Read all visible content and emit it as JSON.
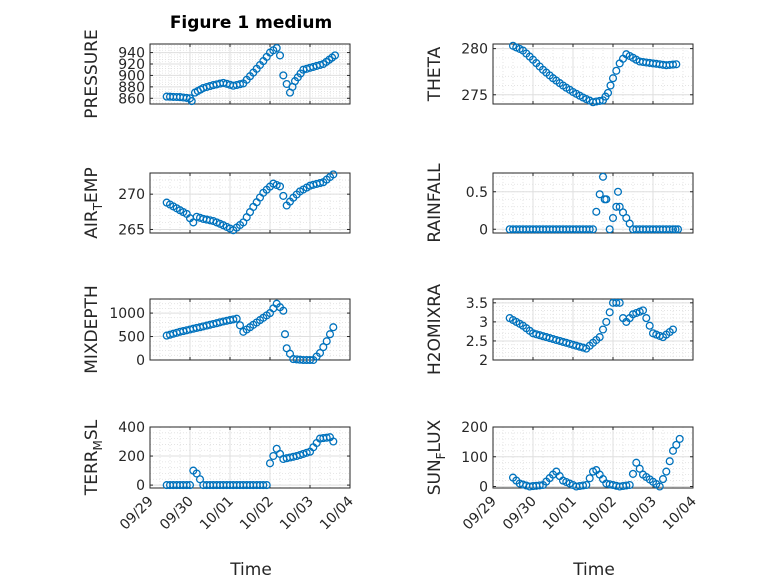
{
  "figure": {
    "title": "Figure 1 medium",
    "xlabel": "Time",
    "date_ticks": [
      "09/29",
      "09/30",
      "10/01",
      "10/02",
      "10/03",
      "10/04"
    ]
  },
  "colors": {
    "marker": "#0072BD",
    "axes": "#262626",
    "grid": "#dfdfdf",
    "background": "#ffffff"
  },
  "chart_data": [
    {
      "type": "scatter",
      "ylabel": "PRESSURE",
      "ylim": [
        850,
        955
      ],
      "yticks": [
        "940",
        "920",
        "900",
        "880",
        "860"
      ],
      "ytick_values": [
        940,
        920,
        900,
        880,
        860
      ],
      "xlim": [
        "09/29",
        "10/04"
      ],
      "grid": true,
      "x": [
        "09/29 10:00",
        "09/29 18:00",
        "09/30 00:00",
        "09/30 01:00",
        "09/30 03:00",
        "09/30 08:00",
        "09/30 14:00",
        "09/30 20:00",
        "10/01 02:00",
        "10/01 08:00",
        "10/01 14:00",
        "10/01 20:00",
        "10/02 00:00",
        "10/02 04:00",
        "10/02 06:00",
        "10/02 08:00",
        "10/02 12:00",
        "10/02 15:00",
        "10/02 20:00",
        "10/03 02:00",
        "10/03 08:00",
        "10/03 15:00"
      ],
      "y": [
        863,
        862,
        860,
        855,
        870,
        878,
        883,
        887,
        882,
        886,
        905,
        925,
        940,
        948,
        935,
        900,
        870,
        890,
        910,
        915,
        920,
        935
      ]
    },
    {
      "type": "scatter",
      "ylabel": "THETA",
      "ylim": [
        274,
        280.5
      ],
      "yticks": [
        "280",
        "275"
      ],
      "ytick_values": [
        280,
        275
      ],
      "xlim": [
        "09/29",
        "10/04"
      ],
      "grid": true,
      "x": [
        "09/29 12:00",
        "09/29 18:00",
        "09/30 00:00",
        "09/30 06:00",
        "09/30 12:00",
        "09/30 18:00",
        "10/01 00:00",
        "10/01 06:00",
        "10/01 12:00",
        "10/01 18:00",
        "10/01 21:00",
        "10/02 00:00",
        "10/02 04:00",
        "10/02 08:00",
        "10/02 16:00",
        "10/03 00:00",
        "10/03 08:00",
        "10/03 14:00"
      ],
      "y": [
        280.3,
        279.8,
        278.8,
        277.7,
        276.8,
        276.0,
        275.3,
        274.7,
        274.2,
        274.4,
        275.2,
        276.8,
        278.4,
        279.4,
        278.6,
        278.4,
        278.2,
        278.3
      ]
    },
    {
      "type": "scatter",
      "ylabel": "AIR_TEMP",
      "ylim": [
        264.5,
        273
      ],
      "yticks": [
        "270",
        "265"
      ],
      "ytick_values": [
        270,
        265
      ],
      "xlim": [
        "09/29",
        "10/04"
      ],
      "grid": true,
      "x": [
        "09/29 10:00",
        "09/29 16:00",
        "09/29 22:00",
        "09/30 02:00",
        "09/30 04:00",
        "09/30 08:00",
        "09/30 14:00",
        "09/30 20:00",
        "10/01 02:00",
        "10/01 08:00",
        "10/01 14:00",
        "10/01 20:00",
        "10/02 02:00",
        "10/02 06:00",
        "10/02 10:00",
        "10/02 14:00",
        "10/02 18:00",
        "10/03 00:00",
        "10/03 08:00",
        "10/03 14:00"
      ],
      "y": [
        268.8,
        268.0,
        267.2,
        266.0,
        266.8,
        266.5,
        266.2,
        265.6,
        264.9,
        266.0,
        268.2,
        270.2,
        271.5,
        271.1,
        268.4,
        269.5,
        270.4,
        271.2,
        271.7,
        272.8
      ]
    },
    {
      "type": "scatter",
      "ylabel": "RAINFALL",
      "ylim": [
        -0.05,
        0.75
      ],
      "yticks": [
        "0.5",
        "0"
      ],
      "ytick_values": [
        0.5,
        0
      ],
      "xlim": [
        "09/29",
        "10/04"
      ],
      "grid": true,
      "x": [
        "09/29 10:00",
        "09/30 00:00",
        "09/30 12:00",
        "10/01 00:00",
        "10/01 12:00",
        "10/01 18:00",
        "10/01 19:00",
        "10/01 20:00",
        "10/01 22:00",
        "10/02 02:00",
        "10/02 03:00",
        "10/02 04:00",
        "10/02 12:00",
        "10/03 00:00",
        "10/03 12:00",
        "10/03 15:00"
      ],
      "y": [
        0,
        0,
        0,
        0,
        0,
        0.7,
        0.4,
        0.4,
        0,
        0.3,
        0.5,
        0.3,
        0,
        0,
        0,
        0
      ]
    },
    {
      "type": "scatter",
      "ylabel": "MIXDEPTH",
      "ylim": [
        0,
        1300
      ],
      "yticks": [
        "1000",
        "500",
        "0"
      ],
      "ytick_values": [
        1000,
        500,
        0
      ],
      "xlim": [
        "09/29",
        "10/04"
      ],
      "grid": true,
      "x": [
        "09/29 10:00",
        "09/29 18:00",
        "09/30 00:00",
        "09/30 06:00",
        "09/30 12:00",
        "09/30 20:00",
        "10/01 04:00",
        "10/01 08:00",
        "10/01 14:00",
        "10/01 20:00",
        "10/02 00:00",
        "10/02 04:00",
        "10/02 08:00",
        "10/02 09:00",
        "10/02 10:00",
        "10/02 14:00",
        "10/02 20:00",
        "10/03 02:00",
        "10/03 06:00",
        "10/03 10:00",
        "10/03 14:00"
      ],
      "y": [
        520,
        600,
        650,
        700,
        750,
        820,
        880,
        600,
        750,
        900,
        1000,
        1200,
        1050,
        550,
        250,
        20,
        0,
        0,
        150,
        400,
        700
      ]
    },
    {
      "type": "scatter",
      "ylabel": "H2OMIXRA",
      "ylim": [
        2,
        3.6
      ],
      "yticks": [
        "3.5",
        "3",
        "2.5",
        "2"
      ],
      "ytick_values": [
        3.5,
        3,
        2.5,
        2
      ],
      "xlim": [
        "09/29",
        "10/04"
      ],
      "grid": true,
      "x": [
        "09/29 10:00",
        "09/29 18:00",
        "09/30 00:00",
        "09/30 08:00",
        "09/30 16:00",
        "10/01 00:00",
        "10/01 08:00",
        "10/01 16:00",
        "10/01 20:00",
        "10/02 00:00",
        "10/02 04:00",
        "10/02 06:00",
        "10/02 08:00",
        "10/02 12:00",
        "10/02 18:00",
        "10/03 00:00",
        "10/03 06:00",
        "10/03 12:00"
      ],
      "y": [
        3.1,
        2.9,
        2.7,
        2.6,
        2.5,
        2.4,
        2.3,
        2.6,
        3.0,
        3.5,
        3.5,
        3.1,
        3.0,
        3.2,
        3.3,
        2.7,
        2.6,
        2.8
      ]
    },
    {
      "type": "scatter",
      "ylabel": "TERR_MSL",
      "ylim": [
        -20,
        400
      ],
      "yticks": [
        "400",
        "200",
        "0"
      ],
      "ytick_values": [
        400,
        200,
        0
      ],
      "xlim": [
        "09/29",
        "10/04"
      ],
      "grid": true,
      "x": [
        "09/29 10:00",
        "09/29 20:00",
        "09/30 00:00",
        "09/30 02:00",
        "09/30 04:00",
        "09/30 08:00",
        "09/30 20:00",
        "10/01 10:00",
        "10/01 22:00",
        "10/02 00:00",
        "10/02 02:00",
        "10/02 04:00",
        "10/02 08:00",
        "10/02 16:00",
        "10/03 00:00",
        "10/03 06:00",
        "10/03 12:00",
        "10/03 14:00"
      ],
      "y": [
        0,
        0,
        0,
        100,
        80,
        0,
        0,
        0,
        0,
        150,
        200,
        250,
        180,
        200,
        230,
        320,
        330,
        300
      ]
    },
    {
      "type": "scatter",
      "ylabel": "SUN_FLUX",
      "ylim": [
        -5,
        200
      ],
      "yticks": [
        "200",
        "100",
        "0"
      ],
      "ytick_values": [
        200,
        100,
        0
      ],
      "xlim": [
        "09/29",
        "10/04"
      ],
      "grid": true,
      "x": [
        "09/29 12:00",
        "09/29 16:00",
        "09/29 22:00",
        "09/30 06:00",
        "09/30 12:00",
        "09/30 14:00",
        "09/30 18:00",
        "10/01 02:00",
        "10/01 08:00",
        "10/01 12:00",
        "10/01 14:00",
        "10/01 20:00",
        "10/02 04:00",
        "10/02 10:00",
        "10/02 14:00",
        "10/02 18:00",
        "10/03 04:00",
        "10/03 08:00",
        "10/03 12:00",
        "10/03 16:00"
      ],
      "y": [
        30,
        10,
        0,
        5,
        40,
        50,
        20,
        0,
        5,
        50,
        55,
        10,
        0,
        5,
        80,
        40,
        0,
        50,
        120,
        160
      ]
    }
  ]
}
